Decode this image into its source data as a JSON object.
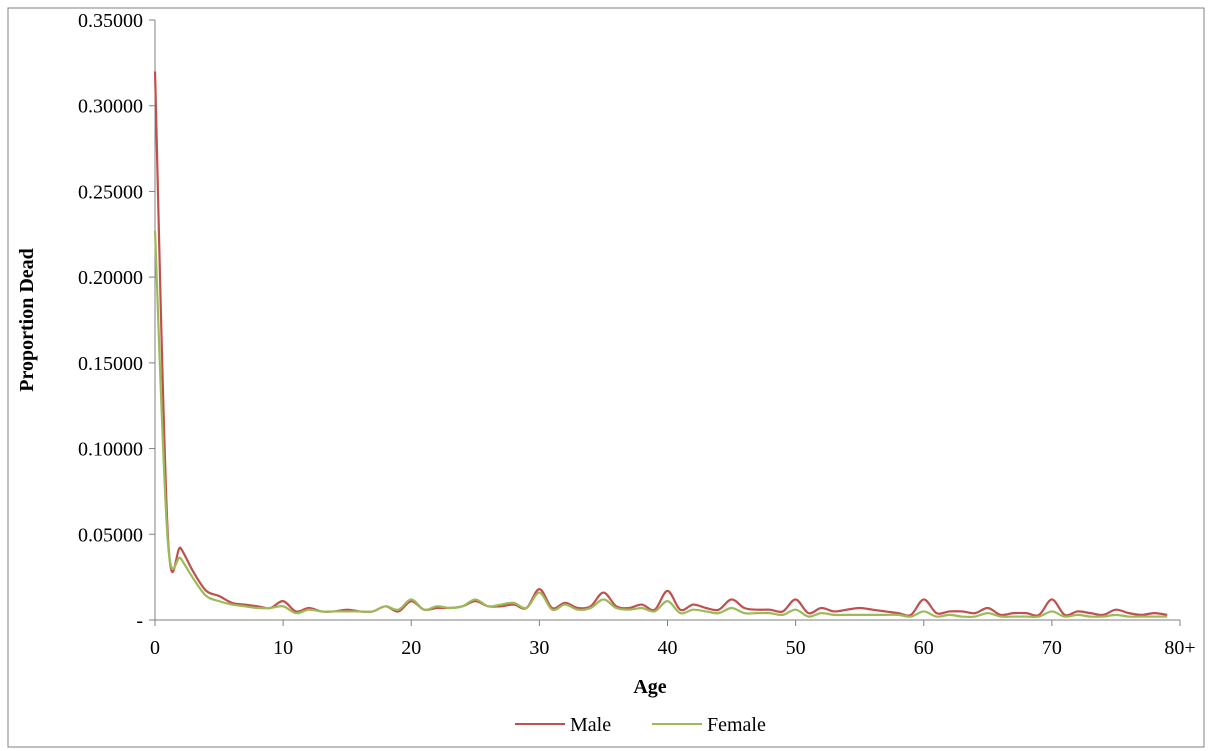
{
  "chart_data": {
    "type": "line",
    "title": "",
    "xlabel": "Age",
    "ylabel": "Proportion Dead",
    "xlim": [
      0,
      80
    ],
    "ylim": [
      0,
      0.35
    ],
    "x_ticks": [
      {
        "value": 0,
        "label": "0"
      },
      {
        "value": 10,
        "label": "10"
      },
      {
        "value": 20,
        "label": "20"
      },
      {
        "value": 30,
        "label": "30"
      },
      {
        "value": 40,
        "label": "40"
      },
      {
        "value": 50,
        "label": "50"
      },
      {
        "value": 60,
        "label": "60"
      },
      {
        "value": 70,
        "label": "70"
      },
      {
        "value": 80,
        "label": "80+"
      }
    ],
    "y_ticks": [
      {
        "value": 0,
        "label": "-"
      },
      {
        "value": 0.05,
        "label": "0.05000"
      },
      {
        "value": 0.1,
        "label": "0.10000"
      },
      {
        "value": 0.15,
        "label": "0.15000"
      },
      {
        "value": 0.2,
        "label": "0.20000"
      },
      {
        "value": 0.25,
        "label": "0.25000"
      },
      {
        "value": 0.3,
        "label": "0.30000"
      },
      {
        "value": 0.35,
        "label": "0.35000"
      }
    ],
    "grid": false,
    "legend_position": "bottom",
    "x": [
      0,
      1,
      2,
      3,
      4,
      5,
      6,
      7,
      8,
      9,
      10,
      11,
      12,
      13,
      14,
      15,
      16,
      17,
      18,
      19,
      20,
      21,
      22,
      23,
      24,
      25,
      26,
      27,
      28,
      29,
      30,
      31,
      32,
      33,
      34,
      35,
      36,
      37,
      38,
      39,
      40,
      41,
      42,
      43,
      44,
      45,
      46,
      47,
      48,
      49,
      50,
      51,
      52,
      53,
      54,
      55,
      56,
      57,
      58,
      59,
      60,
      61,
      62,
      63,
      64,
      65,
      66,
      67,
      68,
      69,
      70,
      71,
      72,
      73,
      74,
      75,
      76,
      77,
      78,
      79
    ],
    "series": [
      {
        "name": "Male",
        "color": "#c0504d",
        "values": [
          0.32,
          0.05,
          0.042,
          0.028,
          0.017,
          0.014,
          0.01,
          0.009,
          0.008,
          0.007,
          0.011,
          0.005,
          0.007,
          0.005,
          0.005,
          0.006,
          0.005,
          0.005,
          0.008,
          0.005,
          0.011,
          0.006,
          0.007,
          0.007,
          0.008,
          0.011,
          0.008,
          0.008,
          0.009,
          0.007,
          0.018,
          0.007,
          0.01,
          0.007,
          0.008,
          0.016,
          0.008,
          0.007,
          0.009,
          0.006,
          0.017,
          0.006,
          0.009,
          0.007,
          0.006,
          0.012,
          0.007,
          0.006,
          0.006,
          0.005,
          0.012,
          0.004,
          0.007,
          0.005,
          0.006,
          0.007,
          0.006,
          0.005,
          0.004,
          0.003,
          0.012,
          0.004,
          0.005,
          0.005,
          0.004,
          0.007,
          0.003,
          0.004,
          0.004,
          0.003,
          0.012,
          0.003,
          0.005,
          0.004,
          0.003,
          0.006,
          0.004,
          0.003,
          0.004,
          0.003
        ]
      },
      {
        "name": "Female",
        "color": "#9bbb59",
        "values": [
          0.227,
          0.046,
          0.036,
          0.024,
          0.014,
          0.011,
          0.009,
          0.008,
          0.007,
          0.007,
          0.008,
          0.004,
          0.006,
          0.005,
          0.005,
          0.005,
          0.005,
          0.005,
          0.008,
          0.006,
          0.012,
          0.006,
          0.008,
          0.007,
          0.008,
          0.012,
          0.008,
          0.009,
          0.01,
          0.007,
          0.016,
          0.006,
          0.009,
          0.006,
          0.007,
          0.012,
          0.007,
          0.006,
          0.007,
          0.005,
          0.011,
          0.004,
          0.006,
          0.005,
          0.004,
          0.007,
          0.004,
          0.004,
          0.004,
          0.003,
          0.006,
          0.002,
          0.004,
          0.003,
          0.003,
          0.003,
          0.003,
          0.003,
          0.003,
          0.002,
          0.005,
          0.002,
          0.003,
          0.002,
          0.002,
          0.004,
          0.002,
          0.002,
          0.002,
          0.002,
          0.005,
          0.002,
          0.003,
          0.002,
          0.002,
          0.003,
          0.002,
          0.002,
          0.002,
          0.002
        ]
      }
    ]
  }
}
